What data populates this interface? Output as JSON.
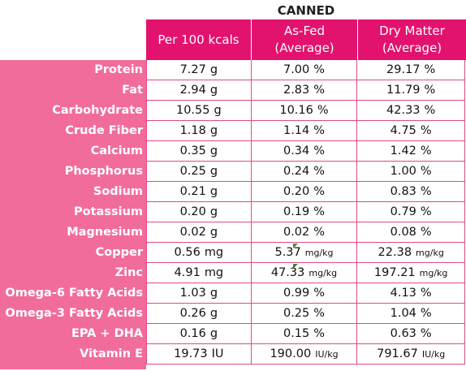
{
  "title": "CANNED",
  "headers": [
    {
      "line1": "Per 100 kcals",
      "line2": ""
    },
    {
      "line1": "As-Fed",
      "line2": "(Average)"
    },
    {
      "line1": "Dry Matter",
      "line2": "(Average)"
    }
  ],
  "rows": [
    {
      "label": "Protein",
      "per100": "7.27",
      "per100_unit": "g",
      "asfed": "7.00",
      "asfed_unit": "%",
      "dm": "29.17",
      "dm_unit": "%"
    },
    {
      "label": "Fat",
      "per100": "2.94",
      "per100_unit": "g",
      "asfed": "2.83",
      "asfed_unit": "%",
      "dm": "11.79",
      "dm_unit": "%"
    },
    {
      "label": "Carbohydrate",
      "per100": "10.55",
      "per100_unit": "g",
      "asfed": "10.16",
      "asfed_unit": "%",
      "dm": "42.33",
      "dm_unit": "%"
    },
    {
      "label": "Crude Fiber",
      "per100": "1.18",
      "per100_unit": "g",
      "asfed": "1.14",
      "asfed_unit": "%",
      "dm": "4.75",
      "dm_unit": "%"
    },
    {
      "label": "Calcium",
      "per100": "0.35",
      "per100_unit": "g",
      "asfed": "0.34",
      "asfed_unit": "%",
      "dm": "1.42",
      "dm_unit": "%"
    },
    {
      "label": "Phosphorus",
      "per100": "0.25",
      "per100_unit": "g",
      "asfed": "0.24",
      "asfed_unit": "%",
      "dm": "1.00",
      "dm_unit": "%"
    },
    {
      "label": "Sodium",
      "per100": "0.21",
      "per100_unit": "g",
      "asfed": "0.20",
      "asfed_unit": "%",
      "dm": "0.83",
      "dm_unit": "%"
    },
    {
      "label": "Potassium",
      "per100": "0.20",
      "per100_unit": "g",
      "asfed": "0.19",
      "asfed_unit": "%",
      "dm": "0.79",
      "dm_unit": "%"
    },
    {
      "label": "Magnesium",
      "per100": "0.02",
      "per100_unit": "g",
      "asfed": "0.02",
      "asfed_unit": "%",
      "dm": "0.08",
      "dm_unit": "%"
    },
    {
      "label": "Copper",
      "per100": "0.56",
      "per100_unit": "mg",
      "asfed": "5.37",
      "asfed_unit": "mg/kg",
      "dm": "22.38",
      "dm_unit": "mg/kg",
      "small_units": true,
      "mark": true
    },
    {
      "label": "Zinc",
      "per100": "4.91",
      "per100_unit": "mg",
      "asfed": "47.33",
      "asfed_unit": "mg/kg",
      "dm": "197.21",
      "dm_unit": "mg/kg",
      "small_units": true,
      "mark": true
    },
    {
      "label": "Omega-6 Fatty Acids",
      "per100": "1.03",
      "per100_unit": "g",
      "asfed": "0.99",
      "asfed_unit": "%",
      "dm": "4.13",
      "dm_unit": "%"
    },
    {
      "label": "Omega-3 Fatty Acids",
      "per100": "0.26",
      "per100_unit": "g",
      "asfed": "0.25",
      "asfed_unit": "%",
      "dm": "1.04",
      "dm_unit": "%"
    },
    {
      "label": "EPA + DHA",
      "per100": "0.16",
      "per100_unit": "g",
      "asfed": "0.15",
      "asfed_unit": "%",
      "dm": "0.63",
      "dm_unit": "%"
    },
    {
      "label": "Vitamin E",
      "per100": "19.73",
      "per100_unit": "IU",
      "asfed": "190.00",
      "asfed_unit": "IU/kg",
      "dm": "791.67",
      "dm_unit": "IU/kg",
      "small_units": true
    }
  ]
}
